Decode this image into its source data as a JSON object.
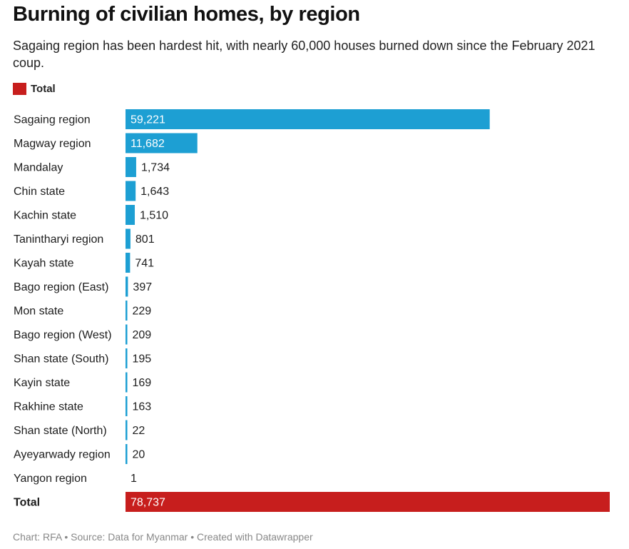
{
  "title": "Burning of civilian homes, by region",
  "subtitle": "Sagaing region has been hardest hit, with nearly 60,000 houses burned down since the February 2021 coup.",
  "legend": {
    "label": "Total",
    "color": "#c71e1d"
  },
  "footer": "Chart: RFA • Source: Data for Myanmar • Created with Datawrapper",
  "colors": {
    "bar": "#1d9fd3",
    "total_bar": "#c71e1d"
  },
  "chart_data": {
    "type": "bar",
    "orientation": "horizontal",
    "title": "Burning of civilian homes, by region",
    "categories": [
      "Sagaing region",
      "Magway region",
      "Mandalay",
      "Chin state",
      "Kachin state",
      "Tanintharyi region",
      "Kayah state",
      "Bago region (East)",
      "Mon state",
      "Bago region (West)",
      "Shan state (South)",
      "Kayin state",
      "Rakhine state",
      "Shan state (North)",
      "Ayeyarwady region",
      "Yangon region",
      "Total"
    ],
    "values": [
      59221,
      11682,
      1734,
      1643,
      1510,
      801,
      741,
      397,
      229,
      209,
      195,
      169,
      163,
      22,
      20,
      1,
      78737
    ],
    "labels": [
      "59,221",
      "11,682",
      "1,734",
      "1,643",
      "1,510",
      "801",
      "741",
      "397",
      "229",
      "209",
      "195",
      "169",
      "163",
      "22",
      "20",
      "1",
      "78,737"
    ],
    "highlight": [
      "Total"
    ],
    "xlim": [
      0,
      78737
    ],
    "grid": false,
    "legend_position": "top-left"
  }
}
